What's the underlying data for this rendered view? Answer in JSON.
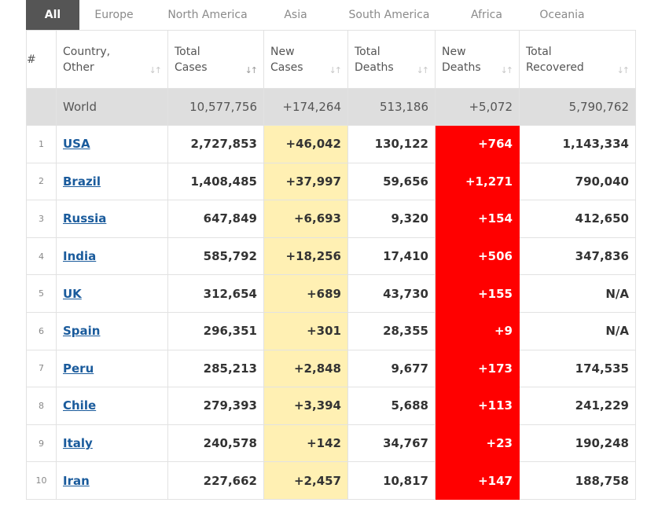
{
  "tabs": [
    "All",
    "Europe",
    "North America",
    "Asia",
    "South America",
    "Africa",
    "Oceania"
  ],
  "active_tab": "All",
  "columns": [
    {
      "label": "#"
    },
    {
      "label": "Country,\nOther"
    },
    {
      "label": "Total\nCases"
    },
    {
      "label": "New\nCases"
    },
    {
      "label": "Total\nDeaths"
    },
    {
      "label": "New\nDeaths"
    },
    {
      "label": "Total\nRecovered"
    }
  ],
  "world": {
    "country": "World",
    "total_cases": "10,577,756",
    "new_cases": "+174,264",
    "total_deaths": "513,186",
    "new_deaths": "+5,072",
    "total_recovered": "5,790,762"
  },
  "rows": [
    {
      "num": "1",
      "country": "USA",
      "total_cases": "2,727,853",
      "new_cases": "+46,042",
      "total_deaths": "130,122",
      "new_deaths": "+764",
      "total_recovered": "1,143,334"
    },
    {
      "num": "2",
      "country": "Brazil",
      "total_cases": "1,408,485",
      "new_cases": "+37,997",
      "total_deaths": "59,656",
      "new_deaths": "+1,271",
      "total_recovered": "790,040"
    },
    {
      "num": "3",
      "country": "Russia",
      "total_cases": "647,849",
      "new_cases": "+6,693",
      "total_deaths": "9,320",
      "new_deaths": "+154",
      "total_recovered": "412,650"
    },
    {
      "num": "4",
      "country": "India",
      "total_cases": "585,792",
      "new_cases": "+18,256",
      "total_deaths": "17,410",
      "new_deaths": "+506",
      "total_recovered": "347,836"
    },
    {
      "num": "5",
      "country": "UK",
      "total_cases": "312,654",
      "new_cases": "+689",
      "total_deaths": "43,730",
      "new_deaths": "+155",
      "total_recovered": "N/A"
    },
    {
      "num": "6",
      "country": "Spain",
      "total_cases": "296,351",
      "new_cases": "+301",
      "total_deaths": "28,355",
      "new_deaths": "+9",
      "total_recovered": "N/A"
    },
    {
      "num": "7",
      "country": "Peru",
      "total_cases": "285,213",
      "new_cases": "+2,848",
      "total_deaths": "9,677",
      "new_deaths": "+173",
      "total_recovered": "174,535"
    },
    {
      "num": "8",
      "country": "Chile",
      "total_cases": "279,393",
      "new_cases": "+3,394",
      "total_deaths": "5,688",
      "new_deaths": "+113",
      "total_recovered": "241,229"
    },
    {
      "num": "9",
      "country": "Italy",
      "total_cases": "240,578",
      "new_cases": "+142",
      "total_deaths": "34,767",
      "new_deaths": "+23",
      "total_recovered": "190,248"
    },
    {
      "num": "10",
      "country": "Iran",
      "total_cases": "227,662",
      "new_cases": "+2,457",
      "total_deaths": "10,817",
      "new_deaths": "+147",
      "total_recovered": "188,758"
    }
  ],
  "colors": {
    "tab_active_bg": "#555555",
    "world_row_bg": "#dedede",
    "new_cases_bg": "#fff0b3",
    "new_deaths_bg": "#ff0000",
    "link": "#1a5b9c"
  },
  "icons": {
    "sort": "sort-arrows-icon",
    "sort_active": "sort-desc-icon"
  }
}
